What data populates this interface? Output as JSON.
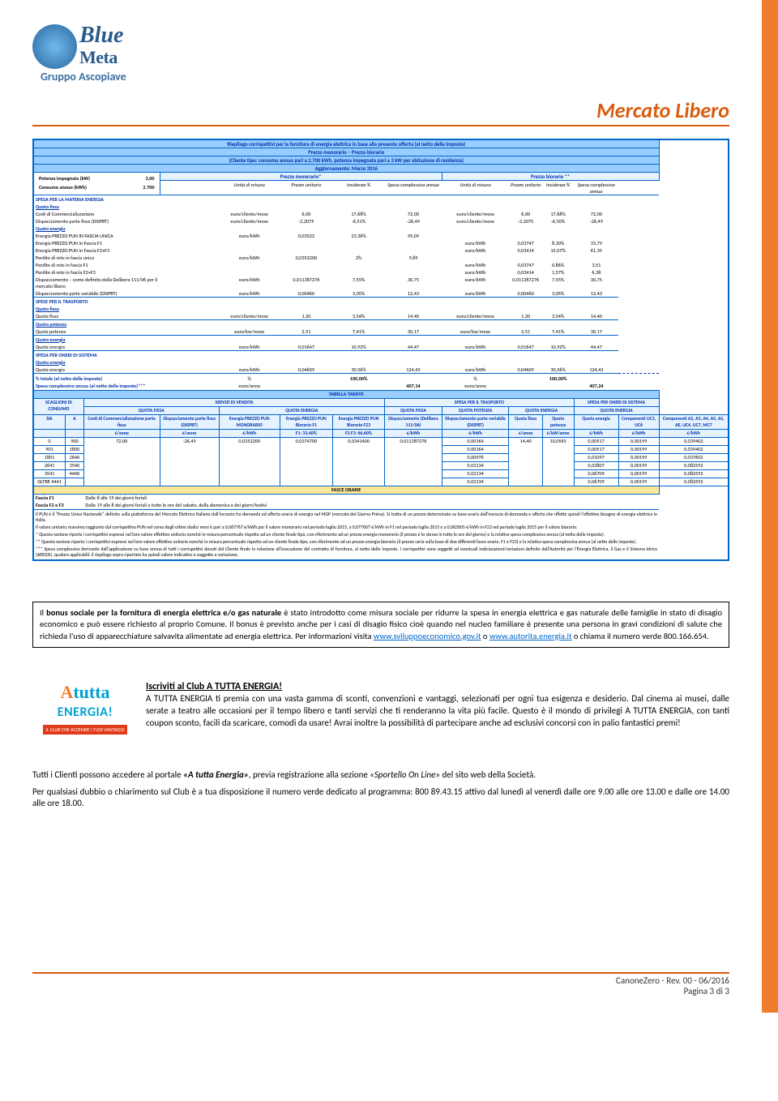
{
  "brand": {
    "line1": "Blue",
    "line2": "Meta",
    "line3": "Gruppo Ascopiave"
  },
  "page_title": "Mercato Libero",
  "main": {
    "title1": "Riepilogo corrispettivi per la fornitura di energia elettrica in base alla presente offerta (al netto delle imposte)",
    "title2": "Prezzo monorario – Prezzo biorario",
    "title3": "(Cliente tipo: consumo annuo pari a 2.700 kWh, potenza impegnata pari a 3 kW per abitazione di residenza)",
    "title4": "Aggiornamento: Marzo 2016",
    "left": {
      "r1l": "Potenza impegnata (kW)",
      "r1v": "3,00",
      "r2l": "Consumo annuo (kWh)",
      "r2v": "2.700"
    },
    "mono_hdr": "Prezzo monorario*",
    "bio_hdr": "Prezzo biorario **",
    "col_h": {
      "u": "Unità di misura",
      "p": "Prezzo unitario",
      "i": "Incidenza %",
      "s": "Spesa complessiva annua"
    },
    "sections": {
      "materia": "SPESA PER LA MATERIA ENERGIA",
      "qfissa": "Quota fissa",
      "qenergia": "Quota energia",
      "trasporto": "SPESE PER IL TRASPORTO",
      "qpotenza": "Quota potenza",
      "sistema": "SPESA PER ONERI DI SISTEMA",
      "tot_pct": "% totale (al netto delle imposte)",
      "tot_spesa": "Spesa complessiva annua (al netto delle imposte)***"
    },
    "rows": {
      "comm": {
        "l": "Costi di Commercializzazione",
        "u": "euro/cliente/mese",
        "mp": "6,00",
        "mi": "17,68%",
        "ms": "72,00",
        "bp": "6,00",
        "bi": "17,68%",
        "bs": "72,00"
      },
      "disp_f": {
        "l": "Dispacciamento parte fissa (DISPBT)",
        "u": "euro/cliente/mese",
        "mp": "-2,2075",
        "mi": "-6,51%",
        "ms": "-26,49",
        "bp": "-2,2075",
        "bi": "-6,50%",
        "bs": "-26,49"
      },
      "ep_unica": {
        "l": "Energia PREZZO PUN IN FASCIA UNICA",
        "u": "euro/kWh",
        "mp": "0,03522",
        "mi": "23,36%",
        "ms": "95,09",
        "bp": "",
        "bi": "",
        "bs": ""
      },
      "ep_f1": {
        "l": "Energia PREZZO PUN in Fascia F1",
        "u": "",
        "mp": "",
        "mi": "",
        "ms": "",
        "u2": "euro/kWh",
        "bp": "0,03747",
        "bi": "8,30%",
        "bs": "33,79"
      },
      "ep_f23": {
        "l": "Energia PREZZO PUN in Fascia F2+F3",
        "u": "",
        "mp": "",
        "mi": "",
        "ms": "",
        "u2": "euro/kWh",
        "bp": "0,03414",
        "bi": "15,07%",
        "bs": "61,39"
      },
      "pr_un": {
        "l": "Perdite di rete in fascia unica",
        "u": "euro/kWh",
        "mp": "0,0352200",
        "mi": "2%",
        "ms": "9,89",
        "bp": "",
        "bi": "",
        "bs": ""
      },
      "pr_f1": {
        "l": "Perdite di rete in fascia F1",
        "u": "",
        "mp": "",
        "mi": "",
        "ms": "",
        "u2": "euro/kWh",
        "bp": "0,03747",
        "bi": "0,86%",
        "bs": "3,51"
      },
      "pr_f23": {
        "l": "Perdite di rete in fascia F2+F3",
        "u": "",
        "mp": "",
        "mi": "",
        "ms": "",
        "u2": "euro/kWh",
        "bp": "0,03414",
        "bi": "1,57%",
        "bs": "6,38"
      },
      "disp_d": {
        "l": "Dispacciamento – come definito dalla Delibera 111/06 per il mercato libero",
        "u": "euro/kWh",
        "mp": "0,011387276",
        "mi": "7,55%",
        "ms": "30,75",
        "u2": "euro/kWh",
        "bp": "0,011387276",
        "bi": "7,55%",
        "bs": "30,75"
      },
      "disp_v": {
        "l": "Dispacciamento parte variabile (DISPBT)",
        "u": "euro/kWh",
        "mp": "0,00460",
        "mi": "3,05%",
        "ms": "12,43",
        "u2": "euro/kWh",
        "bp": "0,00460",
        "bi": "3,05%",
        "bs": "12,43"
      },
      "t_qf": {
        "l": "Quota fissa",
        "u": "euro/cliente/mese",
        "mp": "1,20",
        "mi": "3,54%",
        "ms": "14,40",
        "u2": "euro/cliente/mese",
        "bp": "1,20",
        "bi": "3,54%",
        "bs": "14,40"
      },
      "t_qp": {
        "l": "Quota potenza",
        "u": "euro/kw/mese",
        "mp": "2,51",
        "mi": "7,41%",
        "ms": "30,17",
        "u2": "euro/kw/mese",
        "bp": "2,51",
        "bi": "7,41%",
        "bs": "30,17"
      },
      "t_qe": {
        "l": "Quota energia",
        "u": "euro/kWh",
        "mp": "0,01647",
        "mi": "10,92%",
        "ms": "44,47",
        "u2": "euro/kWh",
        "bp": "0,01647",
        "bi": "10,92%",
        "bs": "44,47"
      },
      "s_qe": {
        "l": "Quota energia",
        "u": "euro/kWh",
        "mp": "0,04609",
        "mi": "30,56%",
        "ms": "124,43",
        "u2": "euro/kWh",
        "bp": "0,04609",
        "bi": "30,56%",
        "bs": "124,43"
      },
      "tot_p": {
        "u": "%",
        "mi": "100,00%",
        "bi": "100,00%"
      },
      "tot_s": {
        "u": "euro/anno",
        "ms": "407,14",
        "u2": "euro/anno",
        "bs": "407,24"
      }
    },
    "tariffe": {
      "title": "TABELLA TARIFFE",
      "h": {
        "scag": "SCAGLIONI DI CONSUMO",
        "serv": "SERVIZI DI VENDITA",
        "trasp": "SPESA PER IL TRASPORTO",
        "sist": "SPESA PER ONERI DI SISTEMA",
        "qf": "QUOTA FISSA",
        "qe": "QUOTA ENERGIA",
        "qfx": "QUOTA FISSA",
        "qpx": "QUOTA POTENZA",
        "qex": "QUOTA ENERGIA",
        "qex2": "QUOTA ENERGIA",
        "da": "DA",
        "a": "A",
        "cc": "Costi di Commercializzazione parte fissa",
        "dpf": "Dispacciamento parte fissa (DISPBT)",
        "epm": "Energia PREZZO PUN MONORARIO",
        "epf1": "Energia PREZZO PUN Biorario F1",
        "epf23": "Energia PREZZO PUN Biorario F23",
        "d111": "Dispacciamento (Delibera 111/06)",
        "dpv": "Dispacciamento parte variabile (DISPBT)",
        "qf2": "Quota fissa",
        "qpot": "Quota potenza",
        "qen": "Quota energia",
        "comp": "Componenti UC3, UC6",
        "comp2": "Componenti A2, A3, A4, A5, AS, AE, UC4, UC7, MCT",
        "u_an": "€/anno",
        "u_kwh": "€/kWh",
        "u_kwan": "€/kW/anno",
        "f1p": "F1: 33,40%",
        "f23p": "F2 F3: 66,60%"
      },
      "ranges": [
        {
          "da": "0",
          "a": "900"
        },
        {
          "da": "901",
          "a": "1800"
        },
        {
          "da": "1801",
          "a": "2640"
        },
        {
          "da": "2641",
          "a": "3540"
        },
        {
          "da": "3541",
          "a": "4440"
        },
        {
          "da": "OLTRE 4441",
          "a": ""
        }
      ],
      "fixed": {
        "cc": "72,00",
        "dpf": "-26,49",
        "epm": "0,0352200",
        "epf1": "0,0374700",
        "epf23": "0,0341400",
        "d111": "0,011387276",
        "qf2": "14,40",
        "qpot": "10,0565"
      },
      "dpv": [
        "0,00164",
        "0,00164",
        "0,00976",
        "0,02134",
        "0,02134",
        "0,02134"
      ],
      "qen": [
        "0,00517",
        "0,00517",
        "0,01097",
        "0,03807",
        "0,06709",
        "0,06709"
      ],
      "comp": [
        "0,00199",
        "0,00199",
        "0,00199",
        "0,00199",
        "0,00199",
        "0,00199"
      ],
      "comp2": [
        "0,039402",
        "0,039402",
        "0,037602",
        "0,082592",
        "0,082592",
        "0,082592"
      ],
      "fasce_title": "FASCE ORARIE",
      "f1": "Fascia F1",
      "f1t": "Dalle 8 alle 19 dei giorni feriali",
      "f23": "Fascia F2 e F3",
      "f23t": "Dalle 19 alle 8 dei giorni feriali e tutte le ore del sabato, della domenica e dei giorni festivi"
    },
    "fine": {
      "p1": "Il PUN è il \"Prezzo Unico Nazionale\" definito sulla piattaforma del Mercato Elettrico Italiano dall'incrocio fra domanda ed offerta oraria di energia nel MGP (mercato del Giorno Prima). Si tratta di un prezzo determinato su base oraria dall'incrocio di domanda e offerta che riflette quindi l'effettivo bisogno di energia elettrica in Italia.",
      "p2": "Il valore unitario massimo raggiunto dal corrispettivo PUN nel corso degli ultimi dodici mesi è pari a 0,067767 €/kWh per il valore monorario nel periodo luglio 2015, a 0,077007 €/kWh in F1 nel periodo luglio 2015 e a 0,063005 €/kWh in F23 nel periodo luglio 2015 per il valore biorario.",
      "p3": "* Questa sezione riporta i corrispettivi espressi nel loro valore effettivo unitario nonché in misura percentuale rispetto ad un cliente finale tipo, con riferimento ad un prezzo energia monorario (il prezzo è lo stesso in tutte le ore del giorno) e la relativa spesa complessiva annua (al netto delle imposte).",
      "p4": "** Questa sezione riporta i corrispettivi espressi nel loro valore effettivo unitario nonché in misura percentuale rispetto ad un cliente finale tipo, con riferimento ad un prezzo energia biorario (il prezzo varia sulla base di due differenti fasce orarie, F1 e F23) e la relativa spesa complessiva annua (al netto delle imposte).",
      "p5": "*** Spesa complessiva derivante dall'applicazione su base annua di tutti i corrispettivi dovuti dal Cliente finale in relazione all'esecuzione del contratto di fornitura, al netto delle imposte. I corrispettivi sono soggetti ad eventuali indicizzazioni/variazioni definite dall'Autorità per l'Energia Elettrica, il Gas e il Sistema Idrico (AEEGSI), qualora applicabili: il riepilogo sopra riportato ha quindi valore indicativo e soggetto a variazione."
    }
  },
  "bonus": {
    "t1": "Il ",
    "b1": "bonus sociale per la fornitura di energia elettrica e/o gas naturale",
    "t2": " è stato introdotto come misura sociale per ridurre la spesa in energia elettrica e gas naturale delle famiglie in stato di disagio economico e può essere richiesto al proprio Comune. Il bonus è previsto anche per i casi di disagio fisico cioè quando nel nucleo familiare è presente una persona in gravi condizioni di salute che richieda l'uso di apparecchiature salvavita alimentate ad energia elettrica. Per informazioni visita ",
    "l1": "www.sviluppoeconomico.gov.it",
    "t3": " o ",
    "l2": "www.autorita.energia.it",
    "t4": " o chiama il numero verde 800.166.654."
  },
  "club": {
    "logo_a": "A",
    "logo_tutta": "tutta",
    "logo_energia": "ENERGIA!",
    "logo_tag": "IL CLUB CHE ACCENDE I TUOI VANTAGGI",
    "title": "Iscriviti al Club A TUTTA ENERGIA!",
    "p1": "A TUTTA ENERGIA ti premia con una vasta gamma di sconti, convenzioni e vantaggi, selezionati per ogni tua esigenza e desiderio. Dal cinema ai musei, dalle serate a teatro alle occasioni per il tempo libero e tanti servizi che ti renderanno la vita più facile. Questo è il mondo di privilegi A TUTTA ENERGIA, con tanti coupon sconto, facili da scaricare, comodi da usare! Avrai inoltre la possibilità di partecipare anche ad esclusivi concorsi con in palio fantastici premi!",
    "p2a": "Tutti i Clienti possono accedere al portale ",
    "p2b": "«A tutta Energia»",
    "p2c": ", previa registrazione alla sezione «",
    "p2d": "Sportello On Line",
    "p2e": "» del sito web della Società.",
    "p3": "Per qualsiasi dubbio o chiarimento sul Club è a tua disposizione il numero verde dedicato al programma: 800 89.43.15 attivo dal lunedì al venerdì dalle ore 9.00 alle ore 13.00 e dalle ore 14.00 alle ore 18.00."
  },
  "footer": {
    "l1": "CanoneZero - Rev. 00 - 06/2016",
    "l2": "Pagina 3 di 3"
  },
  "colors": {
    "orange": "#f07d2e",
    "dark_orange": "#d95c0e",
    "blue": "#0066cc",
    "light_blue": "#99ccff",
    "pale_blue": "#e6f2ff",
    "yellow": "#ffe699"
  }
}
